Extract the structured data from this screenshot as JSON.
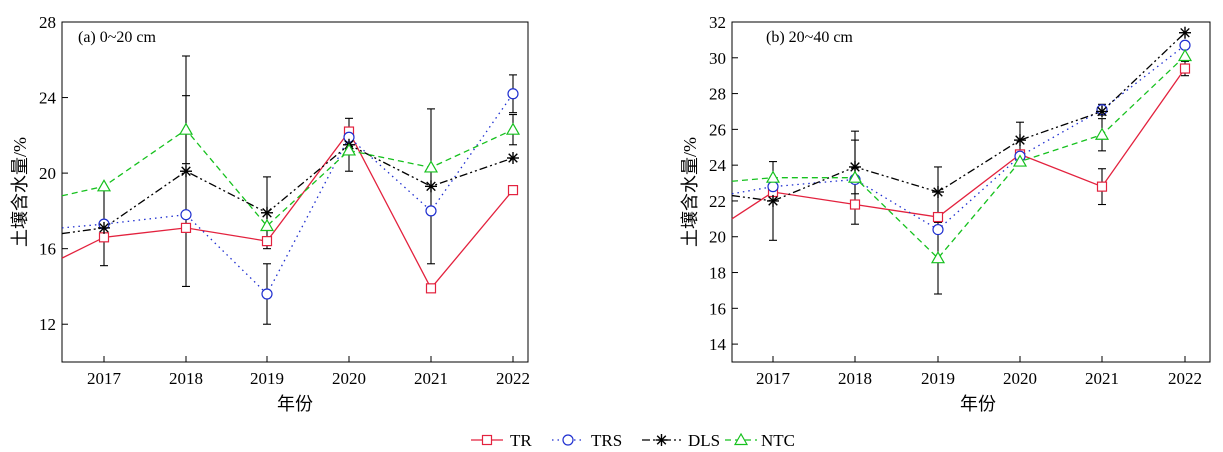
{
  "chart_data": [
    {
      "type": "line",
      "title": "(a) 0~20 cm",
      "xlabel": "年份",
      "ylabel": "土壤含水量/%",
      "categories": [
        "2017",
        "2018",
        "2019",
        "2020",
        "2021",
        "2022"
      ],
      "ylim": [
        10,
        28
      ],
      "yticks": [
        12,
        16,
        20,
        24,
        28
      ],
      "grid": false,
      "series": [
        {
          "name": "TR",
          "values": [
            16.6,
            17.1,
            16.4,
            22.2,
            13.9,
            19.1
          ],
          "err": [
            null,
            null,
            null,
            null,
            null,
            null
          ],
          "lead": 15.5
        },
        {
          "name": "TRS",
          "values": [
            17.3,
            17.8,
            13.6,
            21.9,
            18.0,
            24.2
          ],
          "err": [
            null,
            null,
            1.6,
            null,
            null,
            1.0
          ],
          "lead": 17.1
        },
        {
          "name": "DLS",
          "values": [
            17.1,
            20.1,
            17.9,
            21.5,
            19.3,
            20.8
          ],
          "err": [
            2.0,
            6.1,
            1.9,
            1.4,
            4.1,
            null
          ],
          "lead": 16.8
        },
        {
          "name": "NTC",
          "values": [
            19.3,
            22.3,
            17.2,
            21.2,
            20.3,
            22.3
          ],
          "err": [
            null,
            1.8,
            null,
            null,
            null,
            0.8
          ],
          "lead": 18.8
        }
      ]
    },
    {
      "type": "line",
      "title": "(b) 20~40 cm",
      "xlabel": "年份",
      "ylabel": "土壤含水量/%",
      "categories": [
        "2017",
        "2018",
        "2019",
        "2020",
        "2021",
        "2022"
      ],
      "ylim": [
        13,
        32
      ],
      "yticks": [
        14,
        16,
        18,
        20,
        22,
        24,
        26,
        28,
        30,
        32
      ],
      "grid": false,
      "series": [
        {
          "name": "TR",
          "values": [
            22.5,
            21.8,
            21.1,
            24.6,
            22.8,
            29.4
          ],
          "err": [
            null,
            null,
            null,
            null,
            1.0,
            0.4
          ],
          "lead": 21.0
        },
        {
          "name": "TRS",
          "values": [
            22.8,
            23.2,
            20.4,
            24.5,
            27.1,
            30.7
          ],
          "err": [
            null,
            null,
            null,
            null,
            0.3,
            null
          ],
          "lead": 22.4
        },
        {
          "name": "DLS",
          "values": [
            22.0,
            23.9,
            22.5,
            25.4,
            27.0,
            31.4
          ],
          "err": [
            2.2,
            1.5,
            1.4,
            1.0,
            null,
            null
          ],
          "lead": 22.3
        },
        {
          "name": "NTC",
          "values": [
            23.3,
            23.3,
            18.8,
            24.2,
            25.7,
            30.1
          ],
          "err": [
            null,
            2.6,
            2.0,
            null,
            0.9,
            null
          ],
          "lead": 23.1
        }
      ]
    }
  ],
  "legend": {
    "placement": "bottom-center",
    "items": [
      {
        "label": "TR",
        "color": "#e3223e",
        "marker": "square"
      },
      {
        "label": "TRS",
        "color": "#1f2fd0",
        "marker": "circle"
      },
      {
        "label": "DLS",
        "color": "#000000",
        "marker": "asterisk"
      },
      {
        "label": "NTC",
        "color": "#16c11e",
        "marker": "triangle"
      }
    ]
  }
}
